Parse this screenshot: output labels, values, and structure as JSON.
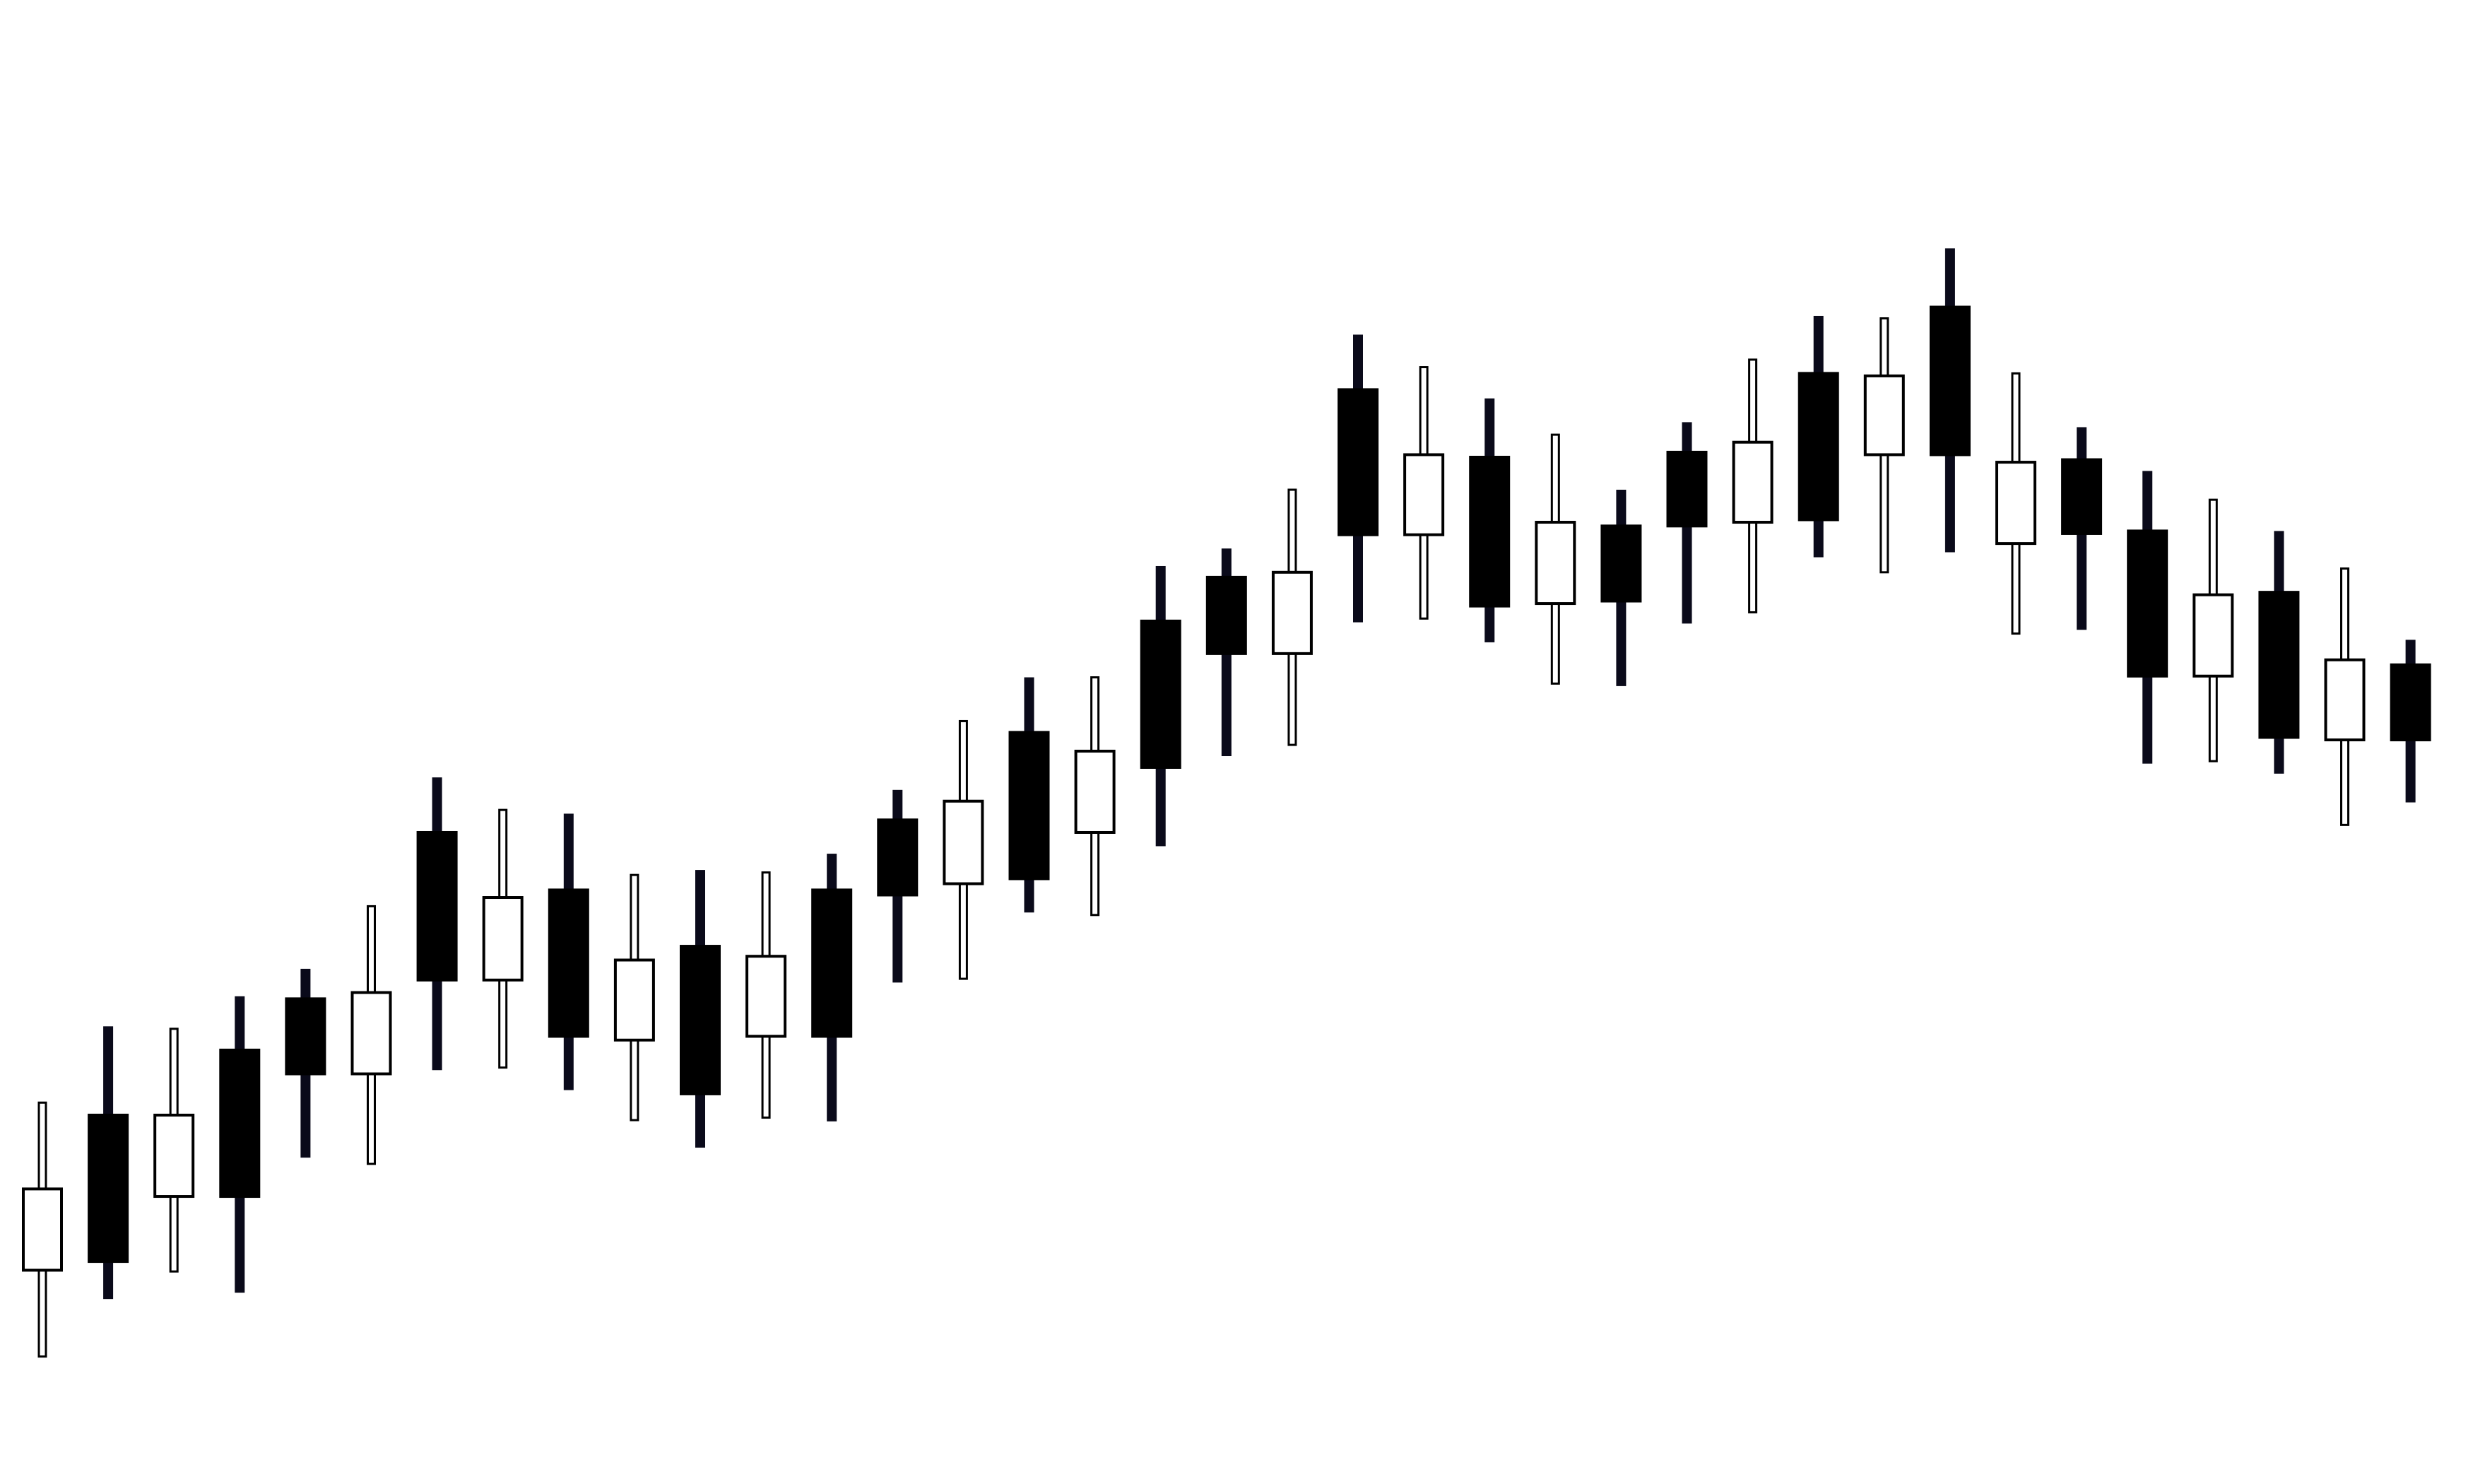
{
  "chart_data": {
    "type": "candlestick",
    "title": "",
    "xlabel": "",
    "ylabel": "",
    "grid": false,
    "legend": "none",
    "ylim": [
      0,
      100
    ],
    "colors": {
      "background": "#ffffff",
      "bullish_fill": "#ffffff",
      "bearish_fill": "#000000",
      "outline": "#000000",
      "wick": "#0a0a1a"
    },
    "candles": [
      {
        "open": 7.6,
        "close": 14.1,
        "high": 21.0,
        "low": 0.7,
        "direction": "up"
      },
      {
        "open": 8.3,
        "close": 20.0,
        "high": 27.1,
        "low": 5.3,
        "direction": "down"
      },
      {
        "open": 13.5,
        "close": 20.0,
        "high": 26.9,
        "low": 7.5,
        "direction": "up"
      },
      {
        "open": 13.5,
        "close": 25.2,
        "high": 29.5,
        "low": 5.8,
        "direction": "down"
      },
      {
        "open": 23.3,
        "close": 29.3,
        "high": 31.7,
        "low": 16.6,
        "direction": "down"
      },
      {
        "open": 23.3,
        "close": 29.8,
        "high": 36.7,
        "low": 16.1,
        "direction": "up"
      },
      {
        "open": 30.8,
        "close": 42.6,
        "high": 47.0,
        "low": 23.6,
        "direction": "down"
      },
      {
        "open": 30.8,
        "close": 37.4,
        "high": 44.4,
        "low": 23.8,
        "direction": "up"
      },
      {
        "open": 26.3,
        "close": 38.0,
        "high": 44.1,
        "low": 22.0,
        "direction": "down"
      },
      {
        "open": 26.0,
        "close": 32.4,
        "high": 39.2,
        "low": 19.6,
        "direction": "up"
      },
      {
        "open": 21.7,
        "close": 33.5,
        "high": 39.6,
        "low": 17.4,
        "direction": "down"
      },
      {
        "open": 26.3,
        "close": 32.7,
        "high": 39.4,
        "low": 19.8,
        "direction": "up"
      },
      {
        "open": 26.3,
        "close": 38.0,
        "high": 40.9,
        "low": 19.5,
        "direction": "down"
      },
      {
        "open": 37.6,
        "close": 43.6,
        "high": 46.0,
        "low": 30.6,
        "direction": "down"
      },
      {
        "open": 38.5,
        "close": 45.1,
        "high": 51.5,
        "low": 30.9,
        "direction": "up"
      },
      {
        "open": 38.9,
        "close": 50.6,
        "high": 55.0,
        "low": 36.2,
        "direction": "down"
      },
      {
        "open": 42.6,
        "close": 49.1,
        "high": 55.0,
        "low": 36.0,
        "direction": "up"
      },
      {
        "open": 47.8,
        "close": 59.5,
        "high": 63.9,
        "low": 41.5,
        "direction": "down"
      },
      {
        "open": 56.9,
        "close": 63.0,
        "high": 65.3,
        "low": 48.7,
        "direction": "down"
      },
      {
        "open": 56.9,
        "close": 63.4,
        "high": 70.0,
        "low": 49.6,
        "direction": "up"
      },
      {
        "open": 66.4,
        "close": 78.0,
        "high": 82.4,
        "low": 59.4,
        "direction": "down"
      },
      {
        "open": 66.4,
        "close": 72.8,
        "high": 79.8,
        "low": 59.7,
        "direction": "up"
      },
      {
        "open": 60.7,
        "close": 72.6,
        "high": 77.3,
        "low": 57.8,
        "direction": "down"
      },
      {
        "open": 60.9,
        "close": 67.4,
        "high": 74.4,
        "low": 54.5,
        "direction": "up"
      },
      {
        "open": 61.1,
        "close": 67.1,
        "high": 70.0,
        "low": 54.3,
        "direction": "down"
      },
      {
        "open": 67.1,
        "close": 73.0,
        "high": 75.4,
        "low": 59.3,
        "direction": "down"
      },
      {
        "open": 67.4,
        "close": 73.8,
        "high": 80.4,
        "low": 60.2,
        "direction": "up"
      },
      {
        "open": 67.6,
        "close": 79.3,
        "high": 83.9,
        "low": 64.6,
        "direction": "down"
      },
      {
        "open": 72.8,
        "close": 79.1,
        "high": 83.7,
        "low": 63.4,
        "direction": "up"
      },
      {
        "open": 72.8,
        "close": 84.6,
        "high": 89.3,
        "low": 65.0,
        "direction": "down"
      },
      {
        "open": 65.7,
        "close": 72.2,
        "high": 79.3,
        "low": 58.5,
        "direction": "up"
      },
      {
        "open": 66.5,
        "close": 72.4,
        "high": 75.0,
        "low": 58.8,
        "direction": "down"
      },
      {
        "open": 55.1,
        "close": 66.7,
        "high": 71.5,
        "low": 48.1,
        "direction": "down"
      },
      {
        "open": 55.1,
        "close": 61.6,
        "high": 69.2,
        "low": 48.3,
        "direction": "up"
      },
      {
        "open": 50.2,
        "close": 61.8,
        "high": 66.7,
        "low": 47.3,
        "direction": "down"
      },
      {
        "open": 50.0,
        "close": 56.4,
        "high": 63.7,
        "low": 43.2,
        "direction": "up"
      },
      {
        "open": 50.0,
        "close": 56.0,
        "high": 58.0,
        "low": 45.0,
        "direction": "down"
      }
    ]
  }
}
